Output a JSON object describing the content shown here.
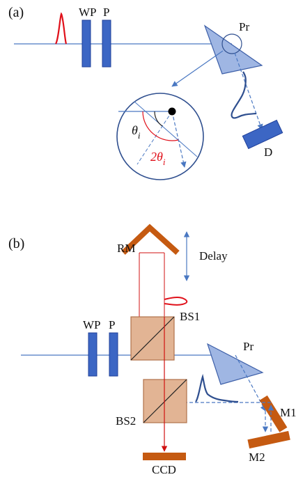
{
  "panel_a": {
    "tag": "(a)",
    "labels": {
      "wp": "WP",
      "p": "P",
      "pr": "Pr",
      "d": "D",
      "theta": "θ",
      "theta_sub": "i",
      "two_theta": "2θ",
      "two_theta_sub": "i"
    }
  },
  "panel_b": {
    "tag": "(b)",
    "labels": {
      "rm": "RM",
      "delay": "Delay",
      "bs1": "BS1",
      "wp": "WP",
      "p": "P",
      "pr": "Pr",
      "m1": "M1",
      "bs2": "BS2",
      "m2": "M2",
      "ccd": "CCD"
    }
  },
  "colors": {
    "beam": "#4a78c2",
    "plate": "#3c66c4",
    "plate_edge": "#20409a",
    "prism": "#9fb6e3",
    "prism_edge": "#3d5fa8",
    "pulse_red": "#e0101a",
    "red_beam": "#d01010",
    "pulse_blue": "#2f4f8f",
    "bs_fill": "#e2b494",
    "bs_edge": "#b0714a",
    "mirror": "#c55a11",
    "angle_dark": "#222222",
    "detector": "#3c66c4"
  }
}
